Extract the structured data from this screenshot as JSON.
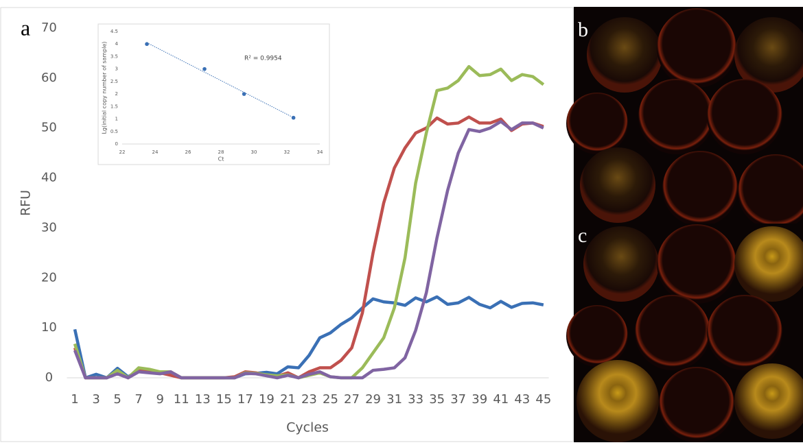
{
  "chart_data": [
    {
      "type": "line",
      "panel_label": "a",
      "y_label": "RFU",
      "x_label": "Cycles",
      "x": [
        1,
        2,
        3,
        4,
        5,
        6,
        7,
        8,
        9,
        10,
        11,
        12,
        13,
        14,
        15,
        16,
        17,
        18,
        19,
        20,
        21,
        22,
        23,
        24,
        25,
        26,
        27,
        28,
        29,
        30,
        31,
        32,
        33,
        34,
        35,
        36,
        37,
        38,
        39,
        40,
        41,
        42,
        43,
        44,
        45
      ],
      "xlim": [
        0.25,
        45.5
      ],
      "xticks": [
        1,
        3,
        5,
        7,
        9,
        11,
        13,
        15,
        17,
        19,
        21,
        23,
        25,
        27,
        29,
        31,
        33,
        35,
        37,
        39,
        41,
        43,
        45
      ],
      "ylim": [
        0,
        70
      ],
      "yticks": [
        0,
        10,
        20,
        30,
        40,
        50,
        60,
        70
      ],
      "series": [
        {
          "color": "#3a70b5",
          "values": [
            9.7,
            0,
            0.7,
            0,
            1.9,
            0.2,
            1.5,
            1.3,
            1.0,
            1.0,
            0,
            0,
            0,
            0,
            0,
            0,
            0.8,
            0.9,
            1.1,
            0.8,
            2.2,
            2.0,
            4.5,
            8.0,
            9.0,
            10.7,
            12.0,
            14.0,
            15.8,
            15.2,
            15.0,
            14.5,
            16.0,
            15.2,
            16.2,
            14.7,
            15.0,
            16.1,
            14.7,
            14.0,
            15.3,
            14.1,
            14.9,
            15.0,
            14.6
          ]
        },
        {
          "color": "#c0504d",
          "values": [
            6,
            0,
            0,
            0,
            1,
            0,
            1.5,
            1.2,
            1,
            0.5,
            0,
            0,
            0,
            0,
            0,
            0.2,
            1.2,
            1,
            0.5,
            0.3,
            1,
            0,
            1.2,
            2,
            2,
            3.5,
            6,
            13,
            25,
            35,
            42,
            46,
            49,
            50,
            52,
            50.8,
            51,
            52.2,
            51,
            51,
            51.8,
            49.5,
            50.8,
            51,
            50.3
          ]
        },
        {
          "color": "#9bbb59",
          "values": [
            6.8,
            0,
            0,
            0,
            1.5,
            0,
            2,
            1.7,
            1.2,
            1.2,
            0,
            0,
            0,
            0,
            0,
            0,
            1,
            0.9,
            0.6,
            0.4,
            0.6,
            0,
            0.5,
            1,
            0.2,
            0,
            0,
            2,
            5,
            8,
            14,
            24,
            39,
            49,
            57.5,
            58,
            59.5,
            62.3,
            60.5,
            60.7,
            61.8,
            59.5,
            60.7,
            60.3,
            58.7
          ]
        },
        {
          "color": "#8064a2",
          "values": [
            5.5,
            0,
            0,
            0,
            0.8,
            0,
            1.2,
            1,
            0.8,
            1.2,
            0,
            0,
            0,
            0,
            0,
            0,
            0.9,
            0.8,
            0.4,
            0,
            0.5,
            0,
            0.7,
            1.2,
            0.2,
            0,
            0,
            0,
            1.5,
            1.7,
            2,
            4,
            9.5,
            17,
            28,
            37.5,
            45,
            49.7,
            49.3,
            50,
            51.3,
            49.7,
            51,
            51,
            50
          ]
        }
      ]
    },
    {
      "type": "scatter",
      "y_label": "Lg(initial copy number of sample)",
      "x_label": "Ct",
      "annotation": "R² = 0.9954",
      "x": [
        23.5,
        27,
        29.4,
        32.4
      ],
      "values": [
        4,
        3,
        2,
        1.05
      ],
      "color": "#3a70b5",
      "xlim": [
        22,
        34
      ],
      "xticks": [
        22,
        24,
        26,
        28,
        30,
        32,
        34
      ],
      "ylim": [
        0,
        4.5
      ],
      "yticks": [
        0,
        0.5,
        1,
        1.5,
        2,
        2.5,
        3,
        3.5,
        4,
        4.5
      ]
    }
  ],
  "images": [
    {
      "label": "b"
    },
    {
      "label": "c"
    }
  ]
}
